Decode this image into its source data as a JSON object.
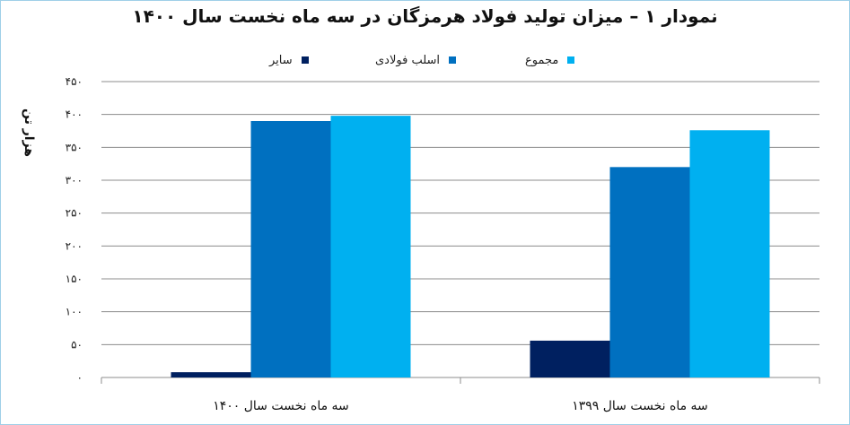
{
  "chart_data": {
    "type": "bar",
    "title": "نمودار ۱ – میزان تولید فولاد هرمزگان در سه ماه نخست سال ۱۴۰۰",
    "ylabel": "هزار تن",
    "xlabel": "",
    "categories": [
      "سه ماه نخست سال ۱۴۰۰",
      "سه ماه نخست سال ۱۳۹۹"
    ],
    "series": [
      {
        "name": "سایر",
        "color": "#002060",
        "values": [
          8,
          56
        ]
      },
      {
        "name": "اسلب فولادی",
        "color": "#0070c0",
        "values": [
          390,
          320
        ]
      },
      {
        "name": "مجموع",
        "color": "#00b0f0",
        "values": [
          398,
          376
        ]
      }
    ],
    "ylim": [
      0,
      450
    ],
    "yticks": [
      0,
      50,
      100,
      150,
      200,
      250,
      300,
      350,
      400,
      450
    ],
    "ytick_labels": [
      "۰",
      "۵۰",
      "۱۰۰",
      "۱۵۰",
      "۲۰۰",
      "۲۵۰",
      "۳۰۰",
      "۳۵۰",
      "۴۰۰",
      "۴۵۰"
    ],
    "grid": true,
    "legend_position": "top"
  }
}
